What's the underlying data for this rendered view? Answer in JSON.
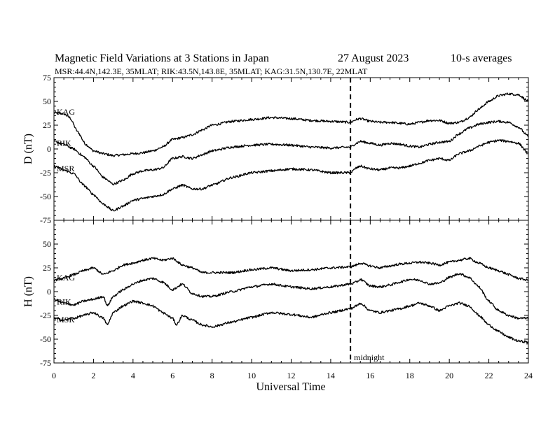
{
  "chart_data": {
    "type": "line",
    "title_left": "Magnetic Field Variations at 3 Stations in Japan",
    "title_date": "27  August  2023",
    "title_right": "10-s averages",
    "subtitle": "MSR:44.4N,142.3E, 35MLAT;  RIK:43.5N,143.8E, 35MLAT;  KAG:31.5N,130.7E, 22MLAT",
    "xlabel": "Universal Time",
    "xlim": [
      0,
      24
    ],
    "x_ticks": [
      "0",
      "2",
      "4",
      "6",
      "8",
      "10",
      "12",
      "14",
      "16",
      "18",
      "20",
      "22",
      "24"
    ],
    "annotation": {
      "x": 15,
      "label": "midnight"
    },
    "panels": [
      {
        "ylabel": "D (nT)",
        "ylim": [
          -75,
          75
        ],
        "y_ticks": [
          "75",
          "50",
          "25",
          "0",
          "-25",
          "-50",
          "-75"
        ],
        "series": [
          {
            "name": "KAG",
            "x": [
              0,
              0.5,
              0.8,
              1.2,
              1.6,
              2,
              2.5,
              3,
              3.5,
              4,
              4.5,
              5,
              5.5,
              6,
              6.5,
              7,
              7.5,
              8,
              9,
              10,
              11,
              12,
              13,
              14,
              15,
              15.3,
              15.5,
              16,
              16.5,
              17,
              17.5,
              18,
              18.5,
              19,
              19.5,
              20,
              20.5,
              21,
              21.5,
              22,
              22.5,
              23,
              23.5,
              24
            ],
            "values": [
              38,
              37,
              33,
              18,
              5,
              -2,
              -5,
              -7,
              -6,
              -5,
              -4,
              -2,
              2,
              10,
              12,
              15,
              20,
              25,
              29,
              31,
              33,
              32,
              30,
              29,
              28,
              31,
              32,
              29,
              28,
              28,
              27,
              26,
              28,
              30,
              30,
              27,
              28,
              33,
              42,
              50,
              56,
              58,
              57,
              50
            ]
          },
          {
            "name": "RIK",
            "x": [
              0,
              0.5,
              1,
              1.5,
              2,
              2.5,
              3,
              3.5,
              4,
              4.5,
              5,
              5.5,
              6,
              6.5,
              7,
              7.5,
              8,
              9,
              10,
              11,
              12,
              13,
              14,
              15,
              15.3,
              15.5,
              16,
              16.5,
              17,
              17.5,
              18,
              18.5,
              19,
              19.5,
              20,
              20.5,
              21,
              21.5,
              22,
              22.5,
              23,
              23.5,
              24
            ],
            "values": [
              8,
              5,
              0,
              -8,
              -18,
              -30,
              -37,
              -33,
              -26,
              -23,
              -22,
              -20,
              -10,
              -8,
              -10,
              -6,
              -2,
              2,
              4,
              5,
              4,
              2,
              1,
              2,
              6,
              8,
              6,
              4,
              6,
              5,
              3,
              2,
              5,
              7,
              8,
              16,
              22,
              26,
              28,
              29,
              28,
              23,
              13
            ]
          },
          {
            "name": "MSR",
            "x": [
              0,
              0.5,
              1,
              1.5,
              2,
              2.5,
              3,
              3.5,
              4,
              4.5,
              5,
              5.5,
              6,
              6.5,
              7,
              7.5,
              8,
              9,
              10,
              11,
              12,
              13,
              14,
              15,
              15.3,
              15.5,
              16,
              16.5,
              17,
              17.5,
              18,
              18.5,
              19,
              19.5,
              20,
              20.5,
              21,
              21.5,
              22,
              22.5,
              23,
              23.5,
              24
            ],
            "values": [
              -18,
              -22,
              -26,
              -38,
              -48,
              -58,
              -65,
              -60,
              -54,
              -52,
              -50,
              -48,
              -42,
              -38,
              -42,
              -42,
              -38,
              -30,
              -25,
              -23,
              -21,
              -22,
              -25,
              -25,
              -20,
              -18,
              -21,
              -22,
              -20,
              -20,
              -18,
              -15,
              -12,
              -10,
              -12,
              -5,
              -2,
              3,
              7,
              9,
              8,
              6,
              -5
            ]
          }
        ]
      },
      {
        "ylabel": "H (nT)",
        "ylim": [
          -75,
          75
        ],
        "y_ticks": [
          "75",
          "50",
          "25",
          "0",
          "-25",
          "-50",
          "-75"
        ],
        "series": [
          {
            "name": "KAG",
            "x": [
              0,
              0.5,
              1,
              1.5,
              2,
              2.5,
              3,
              3.5,
              4,
              4.5,
              5,
              5.5,
              6,
              6.5,
              7,
              7.5,
              8,
              9,
              10,
              11,
              12,
              13,
              14,
              15,
              15.3,
              15.5,
              16,
              16.5,
              17,
              17.5,
              18,
              18.5,
              19,
              19.5,
              20,
              20.5,
              21,
              21.5,
              22,
              22.5,
              23,
              23.5,
              24
            ],
            "values": [
              12,
              14,
              18,
              22,
              25,
              18,
              22,
              28,
              30,
              33,
              35,
              33,
              35,
              28,
              25,
              20,
              20,
              20,
              23,
              25,
              22,
              23,
              25,
              26,
              28,
              30,
              27,
              25,
              27,
              29,
              30,
              31,
              30,
              28,
              31,
              33,
              35,
              30,
              25,
              22,
              18,
              14,
              12
            ]
          },
          {
            "name": "RIK",
            "x": [
              0,
              0.5,
              1,
              1.5,
              2,
              2.5,
              2.7,
              3,
              3.5,
              4,
              4.5,
              5,
              5.5,
              6,
              6.5,
              7,
              7.5,
              8,
              9,
              10,
              11,
              12,
              13,
              14,
              15,
              15.3,
              15.5,
              16,
              16.5,
              17,
              17.5,
              18,
              18.5,
              19,
              19.5,
              20,
              20.5,
              21,
              21.5,
              22,
              22.5,
              23,
              23.5,
              24
            ],
            "values": [
              -8,
              -12,
              -14,
              -10,
              -8,
              -5,
              -15,
              -5,
              2,
              8,
              12,
              14,
              10,
              2,
              8,
              -2,
              -5,
              -5,
              0,
              5,
              8,
              5,
              3,
              5,
              8,
              10,
              13,
              6,
              5,
              7,
              10,
              13,
              12,
              8,
              9,
              15,
              19,
              15,
              5,
              -10,
              -20,
              -25,
              -28,
              -28
            ]
          },
          {
            "name": "MSR",
            "x": [
              0,
              0.5,
              1,
              1.5,
              2,
              2.5,
              2.7,
              3,
              3.5,
              4,
              4.5,
              5,
              5.5,
              6,
              6.2,
              6.5,
              7,
              7.5,
              8,
              9,
              10,
              11,
              12,
              13,
              14,
              15,
              15.3,
              15.5,
              16,
              16.5,
              17,
              17.5,
              18,
              18.5,
              19,
              19.5,
              20,
              20.5,
              21,
              21.5,
              22,
              22.5,
              23,
              23.5,
              24
            ],
            "values": [
              -28,
              -30,
              -28,
              -25,
              -22,
              -28,
              -35,
              -22,
              -15,
              -10,
              -12,
              -15,
              -22,
              -28,
              -35,
              -25,
              -30,
              -35,
              -37,
              -32,
              -27,
              -22,
              -24,
              -27,
              -22,
              -18,
              -15,
              -12,
              -20,
              -22,
              -20,
              -18,
              -15,
              -12,
              -15,
              -20,
              -15,
              -12,
              -15,
              -25,
              -35,
              -42,
              -48,
              -52,
              -53
            ]
          }
        ]
      }
    ]
  }
}
